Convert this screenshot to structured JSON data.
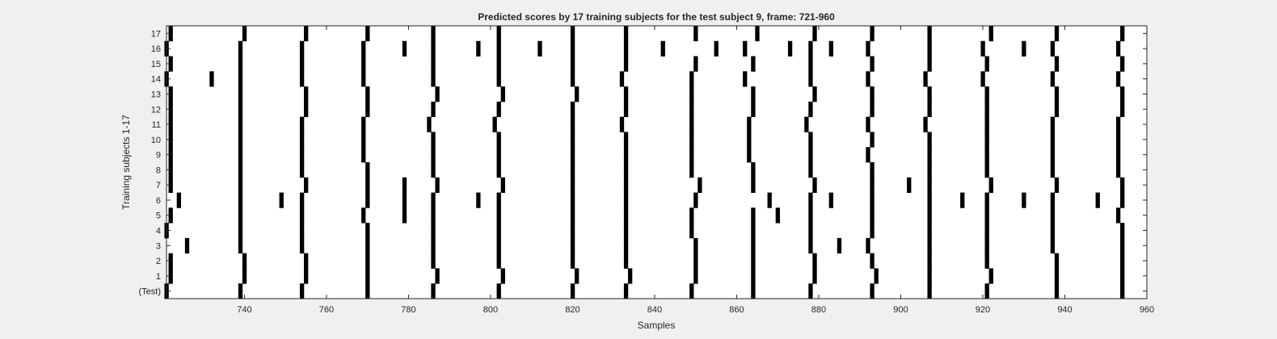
{
  "chart_data": {
    "type": "heatmap",
    "title": "Predicted scores by 17 training subjects for the test subject 9, frame: 721-960",
    "xlabel": "Samples",
    "ylabel": "Training subjects 1-17",
    "xlim": [
      721,
      960
    ],
    "xticks": [
      740,
      760,
      780,
      800,
      820,
      840,
      860,
      880,
      900,
      920,
      940,
      960
    ],
    "rows": [
      "(Test)",
      "1",
      "2",
      "3",
      "4",
      "5",
      "6",
      "7",
      "8",
      "9",
      "10",
      "11",
      "12",
      "13",
      "14",
      "15",
      "16",
      "17"
    ],
    "grid": false,
    "background_color": "#ffffff",
    "mark_color": "#000000",
    "marks": [
      {
        "row": "(Test)",
        "x": [
          721,
          739,
          754,
          770,
          786,
          802,
          820,
          833,
          849,
          864,
          878,
          893,
          907,
          921,
          938,
          954
        ]
      },
      {
        "row": "1",
        "x": [
          722,
          740,
          755,
          770,
          787,
          803,
          821,
          834,
          850,
          864,
          879,
          894,
          907,
          922,
          938,
          954
        ]
      },
      {
        "row": "2",
        "x": [
          722,
          740,
          755,
          770,
          786,
          802,
          820,
          833,
          850,
          864,
          879,
          893,
          907,
          921,
          938,
          954
        ]
      },
      {
        "row": "3",
        "x": [
          726,
          739,
          754,
          770,
          786,
          802,
          820,
          833,
          850,
          864,
          878,
          885,
          892,
          907,
          921,
          937,
          954
        ]
      },
      {
        "row": "4",
        "x": [
          721,
          739,
          754,
          770,
          786,
          802,
          820,
          833,
          849,
          864,
          878,
          893,
          907,
          921,
          937,
          954
        ]
      },
      {
        "row": "5",
        "x": [
          722,
          739,
          754,
          769,
          779,
          786,
          802,
          820,
          833,
          849,
          864,
          870,
          878,
          893,
          907,
          921,
          937,
          953
        ]
      },
      {
        "row": "6",
        "x": [
          724,
          739,
          749,
          754,
          770,
          779,
          786,
          797,
          802,
          820,
          833,
          850,
          868,
          878,
          883,
          893,
          907,
          915,
          921,
          930,
          937,
          948,
          954
        ]
      },
      {
        "row": "7",
        "x": [
          722,
          739,
          755,
          770,
          779,
          787,
          803,
          820,
          833,
          851,
          864,
          879,
          893,
          902,
          907,
          922,
          938,
          954
        ]
      },
      {
        "row": "8",
        "x": [
          722,
          739,
          754,
          770,
          786,
          802,
          820,
          833,
          849,
          864,
          878,
          893,
          907,
          921,
          937,
          953
        ]
      },
      {
        "row": "9",
        "x": [
          722,
          739,
          754,
          769,
          786,
          802,
          820,
          833,
          849,
          863,
          878,
          892,
          907,
          921,
          937,
          953
        ]
      },
      {
        "row": "10",
        "x": [
          722,
          739,
          754,
          769,
          786,
          802,
          820,
          833,
          849,
          863,
          878,
          893,
          907,
          921,
          937,
          953
        ]
      },
      {
        "row": "11",
        "x": [
          722,
          739,
          754,
          769,
          785,
          801,
          820,
          832,
          849,
          863,
          877,
          892,
          906,
          921,
          937,
          953
        ]
      },
      {
        "row": "12",
        "x": [
          722,
          739,
          755,
          770,
          786,
          802,
          820,
          833,
          849,
          864,
          878,
          893,
          907,
          921,
          938,
          954
        ]
      },
      {
        "row": "13",
        "x": [
          722,
          739,
          755,
          770,
          787,
          803,
          821,
          833,
          849,
          864,
          879,
          893,
          907,
          921,
          938,
          954
        ]
      },
      {
        "row": "14",
        "x": [
          721,
          732,
          739,
          754,
          769,
          786,
          802,
          820,
          832,
          849,
          862,
          878,
          892,
          906,
          920,
          937,
          953
        ]
      },
      {
        "row": "15",
        "x": [
          722,
          739,
          754,
          769,
          786,
          802,
          820,
          833,
          850,
          864,
          878,
          893,
          907,
          921,
          938,
          954
        ]
      },
      {
        "row": "16",
        "x": [
          721,
          739,
          754,
          769,
          779,
          786,
          797,
          802,
          812,
          820,
          833,
          842,
          855,
          862,
          873,
          878,
          883,
          892,
          907,
          920,
          930,
          937,
          953
        ]
      },
      {
        "row": "17",
        "x": [
          722,
          740,
          755,
          770,
          786,
          802,
          820,
          833,
          850,
          865,
          879,
          893,
          907,
          922,
          938,
          954
        ]
      }
    ]
  }
}
